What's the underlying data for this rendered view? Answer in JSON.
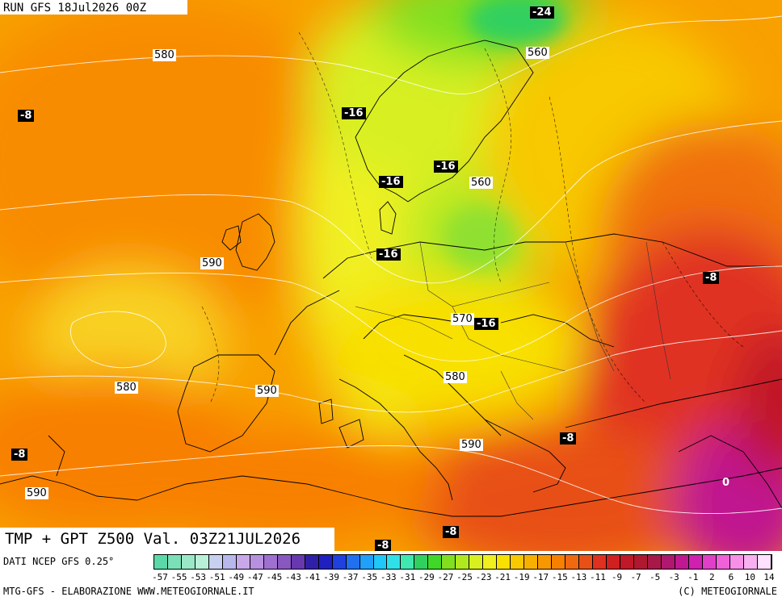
{
  "header": {
    "run_label": "RUN GFS 18Jul2026 00Z"
  },
  "title": "TMP + GPT Z500 Val. 03Z21JUL2026",
  "footer": {
    "source": "DATI NCEP GFS 0.25°",
    "credit": "MTG-GFS - ELABORAZIONE WWW.METEOGIORNALE.IT",
    "copyright": "(C) METEOGIORNALE"
  },
  "legend": {
    "tick_labels": [
      "-57",
      "-55",
      "-53",
      "-51",
      "-49",
      "-47",
      "-45",
      "-43",
      "-41",
      "-39",
      "-37",
      "-35",
      "-33",
      "-31",
      "-29",
      "-27",
      "-25",
      "-23",
      "-21",
      "-19",
      "-17",
      "-15",
      "-13",
      "-11",
      "-9",
      "-7",
      "-5",
      "-3",
      "-1",
      "2",
      "6",
      "10",
      "14"
    ],
    "colors": [
      "#5ad8a8",
      "#7ae0b8",
      "#9ae8c8",
      "#b8f0d8",
      "#c8d0f0",
      "#b8b8ec",
      "#c8a8e8",
      "#b890e0",
      "#a070d0",
      "#8858c0",
      "#6838b0",
      "#3020a8",
      "#2020c0",
      "#2040e0",
      "#2070f0",
      "#20a0f8",
      "#20c8f8",
      "#30e0e8",
      "#40e8b0",
      "#30d060",
      "#40d828",
      "#80e020",
      "#b0e820",
      "#d8f020",
      "#f0f020",
      "#f8e000",
      "#f8c800",
      "#f8b000",
      "#f89800",
      "#f88000",
      "#f06810",
      "#e85018",
      "#e03020",
      "#d02020",
      "#c01828",
      "#b01830",
      "#a81848",
      "#b01870",
      "#c01890",
      "#d020b0",
      "#e040c8",
      "#f060d8",
      "#f890e8",
      "#f8b0f0",
      "#ffe0ff"
    ]
  },
  "temperature_labels": [
    "-24",
    "-8",
    "-16",
    "-16",
    "-16",
    "-16",
    "-8",
    "-16",
    "-8",
    "-8",
    "-8",
    "-8",
    "-8",
    "0"
  ],
  "height_labels": [
    "580",
    "560",
    "560",
    "590",
    "570",
    "580",
    "580",
    "590",
    "590",
    "590"
  ]
}
